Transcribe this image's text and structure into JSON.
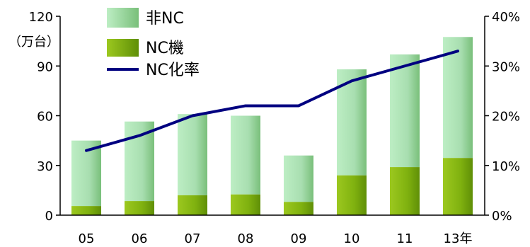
{
  "chart_data": {
    "type": "bar",
    "categories": [
      "05",
      "06",
      "07",
      "08",
      "09",
      "10",
      "11",
      "13年"
    ],
    "series": [
      {
        "name": "非NC",
        "values": [
          39.5,
          48,
          49,
          47.5,
          28,
          64,
          68,
          73
        ]
      },
      {
        "name": "NC機",
        "values": [
          5.5,
          8.5,
          12,
          12.5,
          8,
          24,
          29,
          34.5
        ]
      },
      {
        "name": "NC化率",
        "values": [
          13,
          16,
          20,
          22,
          22,
          27,
          30,
          33
        ]
      }
    ],
    "y_left": {
      "ticks": [
        "0",
        "30",
        "60",
        "90",
        "120"
      ],
      "unit_label": "（万台）",
      "range": [
        0,
        120
      ]
    },
    "y_right": {
      "ticks": [
        "0%",
        "10%",
        "20%",
        "30%",
        "40%"
      ],
      "range": [
        0,
        40
      ]
    },
    "legend": {
      "position": "top-left",
      "items": [
        "非NC",
        "NC機",
        "NC化率"
      ]
    },
    "colors": {
      "non_nc_top": "#bff0c7",
      "non_nc_bottom": "#73b96c",
      "nc_top": "#93c11a",
      "nc_bottom": "#5e8f06",
      "line": "#000080"
    }
  }
}
